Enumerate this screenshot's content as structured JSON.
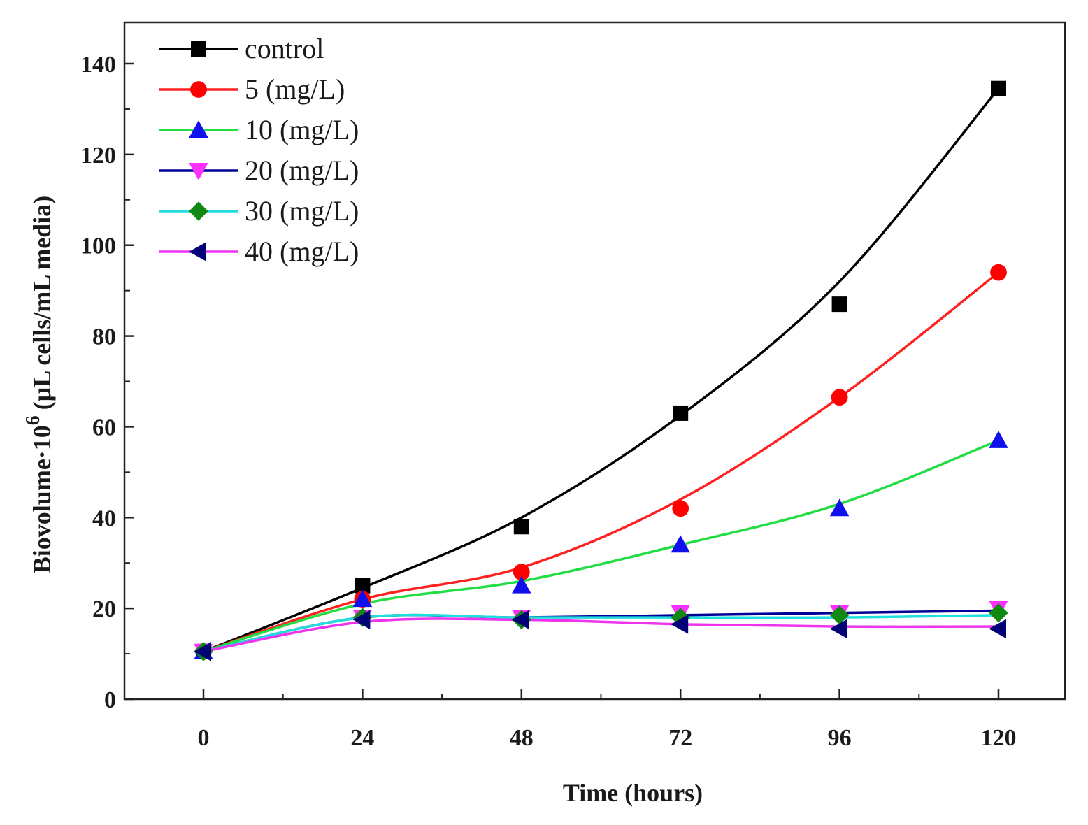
{
  "chart_data": {
    "type": "line",
    "title": "",
    "xlabel": "Time (hours)",
    "ylabel": "Biovolume·10",
    "ylabel_superscript": "6",
    "ylabel_units": "(μL cells/mL media)",
    "xlim": [
      -10,
      130
    ],
    "ylim": [
      0,
      150
    ],
    "x_ticks": [
      0,
      24,
      48,
      72,
      96,
      120
    ],
    "y_ticks": [
      0,
      20,
      40,
      60,
      80,
      100,
      120,
      140
    ],
    "legend_position": "top-left",
    "x": [
      0,
      24,
      48,
      72,
      96,
      120
    ],
    "series": [
      {
        "name": "control",
        "values": [
          10.5,
          25,
          38,
          63,
          87,
          134.5
        ],
        "fit": [
          10.5,
          24.5,
          40,
          62.5,
          92,
          134.5
        ],
        "color": "#000000",
        "marker_color": "#000000",
        "marker": "square"
      },
      {
        "name": "5 (mg/L)",
        "values": [
          10.5,
          22,
          28,
          42,
          66.5,
          94
        ],
        "fit": [
          10.5,
          22,
          29,
          44,
          66.5,
          94
        ],
        "color": "#ff2020",
        "marker_color": "#ff0000",
        "marker": "circle"
      },
      {
        "name": "10 (mg/L)",
        "values": [
          10.5,
          22,
          25,
          34,
          42,
          57
        ],
        "fit": [
          10.5,
          21,
          26,
          34,
          43,
          57
        ],
        "color": "#22dd44",
        "marker_color": "#1010ee",
        "marker": "triangle-up"
      },
      {
        "name": "20 (mg/L)",
        "values": [
          10.5,
          18,
          18,
          19,
          19,
          20
        ],
        "fit": [
          10.5,
          18,
          18,
          18.5,
          19,
          19.5
        ],
        "color": "#000099",
        "marker_color": "#ff30ff",
        "marker": "triangle-down"
      },
      {
        "name": "30 (mg/L)",
        "values": [
          10.5,
          18,
          17.5,
          18,
          18.5,
          19
        ],
        "fit": [
          10.5,
          18,
          18,
          18,
          18,
          18.5
        ],
        "color": "#22dddd",
        "marker_color": "#118811",
        "marker": "diamond"
      },
      {
        "name": "40 (mg/L)",
        "values": [
          10.5,
          17.5,
          17.5,
          16.5,
          15.5,
          15.5
        ],
        "fit": [
          10.5,
          17,
          17.5,
          16.5,
          16,
          16
        ],
        "color": "#ee33ee",
        "marker_color": "#000077",
        "marker": "triangle-left"
      }
    ]
  }
}
